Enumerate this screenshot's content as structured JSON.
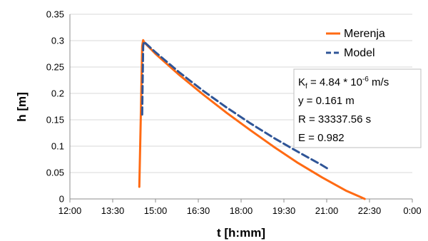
{
  "chart_data": {
    "type": "line",
    "xlabel": "t [h:mm]",
    "ylabel": "h [m]",
    "xlim": [
      720,
      1440
    ],
    "ylim": [
      0,
      0.35
    ],
    "x_ticks": [
      {
        "value": 720,
        "label": "12:00"
      },
      {
        "value": 810,
        "label": "13:30"
      },
      {
        "value": 900,
        "label": "15:00"
      },
      {
        "value": 990,
        "label": "16:30"
      },
      {
        "value": 1080,
        "label": "18:00"
      },
      {
        "value": 1170,
        "label": "19:30"
      },
      {
        "value": 1260,
        "label": "21:00"
      },
      {
        "value": 1350,
        "label": "22:30"
      },
      {
        "value": 1440,
        "label": "0:00"
      }
    ],
    "y_ticks": [
      {
        "value": 0,
        "label": "0"
      },
      {
        "value": 0.05,
        "label": "0.05"
      },
      {
        "value": 0.1,
        "label": "0.1"
      },
      {
        "value": 0.15,
        "label": "0.15"
      },
      {
        "value": 0.2,
        "label": "0.2"
      },
      {
        "value": 0.25,
        "label": "0.25"
      },
      {
        "value": 0.3,
        "label": "0.3"
      },
      {
        "value": 0.35,
        "label": "0.35"
      }
    ],
    "grid": "horizontal",
    "legend_position": "top-right",
    "series": [
      {
        "name": "Merenja",
        "color": "#FF6A13",
        "style": "solid",
        "x": [
          866,
          869,
          872,
          874,
          876,
          900,
          950,
          1000,
          1050,
          1100,
          1150,
          1200,
          1250,
          1300,
          1330,
          1340
        ],
        "y": [
          0.023,
          0.15,
          0.29,
          0.301,
          0.297,
          0.275,
          0.235,
          0.198,
          0.163,
          0.13,
          0.098,
          0.068,
          0.041,
          0.016,
          0.004,
          0.0
        ]
      },
      {
        "name": "Model",
        "color": "#2F5597",
        "style": "dashed",
        "x": [
          872,
          874,
          875.5,
          900,
          950,
          1000,
          1050,
          1100,
          1150,
          1200,
          1250,
          1261
        ],
        "y": [
          0.16,
          0.29,
          0.298,
          0.278,
          0.24,
          0.205,
          0.173,
          0.143,
          0.115,
          0.089,
          0.064,
          0.058
        ]
      }
    ],
    "annotation": {
      "line1_prefix": "K",
      "line1_sub": "f",
      "line1_mid": " = 4.84 * 10",
      "line1_sup": "-6",
      "line1_suffix": " m/s",
      "line2": "y = 0.161 m",
      "line3": "R = 33337.56 s",
      "line4": "E = 0.982"
    }
  }
}
